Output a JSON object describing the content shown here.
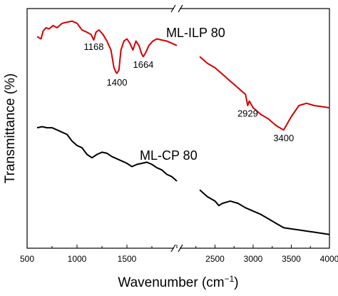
{
  "chart_data": {
    "type": "line",
    "title": "",
    "xlabel": "Wavenumber (cm⁻¹)",
    "ylabel": "Transmittance (%)",
    "x_axis_broken": true,
    "x_segments": [
      {
        "range": [
          500,
          2000
        ],
        "ticks": [
          500,
          1000,
          1500,
          2000
        ],
        "tick_labels": [
          "500",
          "1000",
          "1500",
          ""
        ]
      },
      {
        "range": [
          2000,
          4000
        ],
        "ticks": [
          2500,
          3000,
          3500,
          4000
        ],
        "tick_labels": [
          "2500",
          "3000",
          "3500",
          "4000"
        ]
      }
    ],
    "ylim": [
      0,
      100
    ],
    "y_tick_labels": false,
    "grid": false,
    "legend": "none",
    "series": [
      {
        "name": "ML-ILP 80",
        "color": "#d40000",
        "segments": [
          [
            [
              600,
              88
            ],
            [
              640,
              87
            ],
            [
              660,
              90.5
            ],
            [
              690,
              92
            ],
            [
              720,
              91.5
            ],
            [
              760,
              93
            ],
            [
              800,
              92
            ],
            [
              850,
              94
            ],
            [
              900,
              94.5
            ],
            [
              950,
              95
            ],
            [
              1000,
              94
            ],
            [
              1050,
              91
            ],
            [
              1100,
              90
            ],
            [
              1140,
              89
            ],
            [
              1168,
              86.5
            ],
            [
              1190,
              90
            ],
            [
              1220,
              91
            ],
            [
              1260,
              89
            ],
            [
              1300,
              86
            ],
            [
              1340,
              82
            ],
            [
              1370,
              74
            ],
            [
              1390,
              72
            ],
            [
              1400,
              71.5
            ],
            [
              1420,
              73
            ],
            [
              1440,
              82
            ],
            [
              1470,
              86
            ],
            [
              1500,
              87
            ],
            [
              1530,
              85
            ],
            [
              1560,
              82
            ],
            [
              1590,
              86
            ],
            [
              1620,
              84
            ],
            [
              1650,
              80
            ],
            [
              1664,
              79
            ],
            [
              1690,
              81
            ],
            [
              1720,
              84
            ],
            [
              1760,
              86
            ],
            [
              1800,
              87
            ],
            [
              1850,
              86.5
            ],
            [
              1900,
              86
            ],
            [
              1950,
              85
            ],
            [
              2000,
              84
            ]
          ],
          [
            [
              2300,
              79
            ],
            [
              2400,
              76
            ],
            [
              2500,
              74
            ],
            [
              2600,
              71
            ],
            [
              2700,
              68
            ],
            [
              2800,
              65
            ],
            [
              2900,
              62
            ],
            [
              2929,
              57
            ],
            [
              2950,
              59
            ],
            [
              3000,
              56
            ],
            [
              3100,
              53
            ],
            [
              3200,
              51
            ],
            [
              3300,
              48
            ],
            [
              3400,
              46
            ],
            [
              3500,
              52
            ],
            [
              3600,
              57
            ],
            [
              3700,
              58
            ],
            [
              3800,
              57
            ],
            [
              3900,
              56.5
            ],
            [
              4000,
              56
            ]
          ]
        ]
      },
      {
        "name": "ML-CP 80",
        "color": "#000000",
        "segments": [
          [
            [
              600,
              47
            ],
            [
              650,
              47.5
            ],
            [
              700,
              47
            ],
            [
              750,
              47
            ],
            [
              800,
              46
            ],
            [
              850,
              45
            ],
            [
              900,
              44
            ],
            [
              950,
              41
            ],
            [
              1000,
              39
            ],
            [
              1050,
              38
            ],
            [
              1100,
              35
            ],
            [
              1150,
              33.5
            ],
            [
              1200,
              35
            ],
            [
              1250,
              36
            ],
            [
              1300,
              35.5
            ],
            [
              1350,
              34
            ],
            [
              1400,
              33
            ],
            [
              1450,
              32
            ],
            [
              1500,
              31
            ],
            [
              1550,
              29.5
            ],
            [
              1600,
              30.5
            ],
            [
              1650,
              31
            ],
            [
              1700,
              31.5
            ],
            [
              1750,
              30.5
            ],
            [
              1800,
              29
            ],
            [
              1850,
              28
            ],
            [
              1900,
              26
            ],
            [
              1950,
              25
            ],
            [
              2000,
              23
            ]
          ],
          [
            [
              2300,
              19
            ],
            [
              2400,
              16
            ],
            [
              2500,
              14
            ],
            [
              2550,
              12
            ],
            [
              2600,
              13
            ],
            [
              2700,
              14
            ],
            [
              2800,
              13
            ],
            [
              2900,
              11
            ],
            [
              3000,
              9.5
            ],
            [
              3100,
              8
            ],
            [
              3200,
              6
            ],
            [
              3300,
              4
            ],
            [
              3400,
              2
            ],
            [
              3500,
              1.5
            ],
            [
              3600,
              1
            ],
            [
              3700,
              0.5
            ],
            [
              3800,
              0
            ],
            [
              3900,
              -0.5
            ],
            [
              4000,
              -1
            ]
          ]
        ]
      }
    ],
    "annotations": [
      {
        "text": "1168",
        "series": "ML-ILP 80",
        "x": 1168,
        "y": 82
      },
      {
        "text": "1400",
        "series": "ML-ILP 80",
        "x": 1400,
        "y": 66
      },
      {
        "text": "1664",
        "series": "ML-ILP 80",
        "x": 1664,
        "y": 74
      },
      {
        "text": "2929",
        "series": "ML-ILP 80",
        "x": 2929,
        "y": 52
      },
      {
        "text": "3400",
        "series": "ML-ILP 80",
        "x": 3400,
        "y": 41
      }
    ]
  }
}
